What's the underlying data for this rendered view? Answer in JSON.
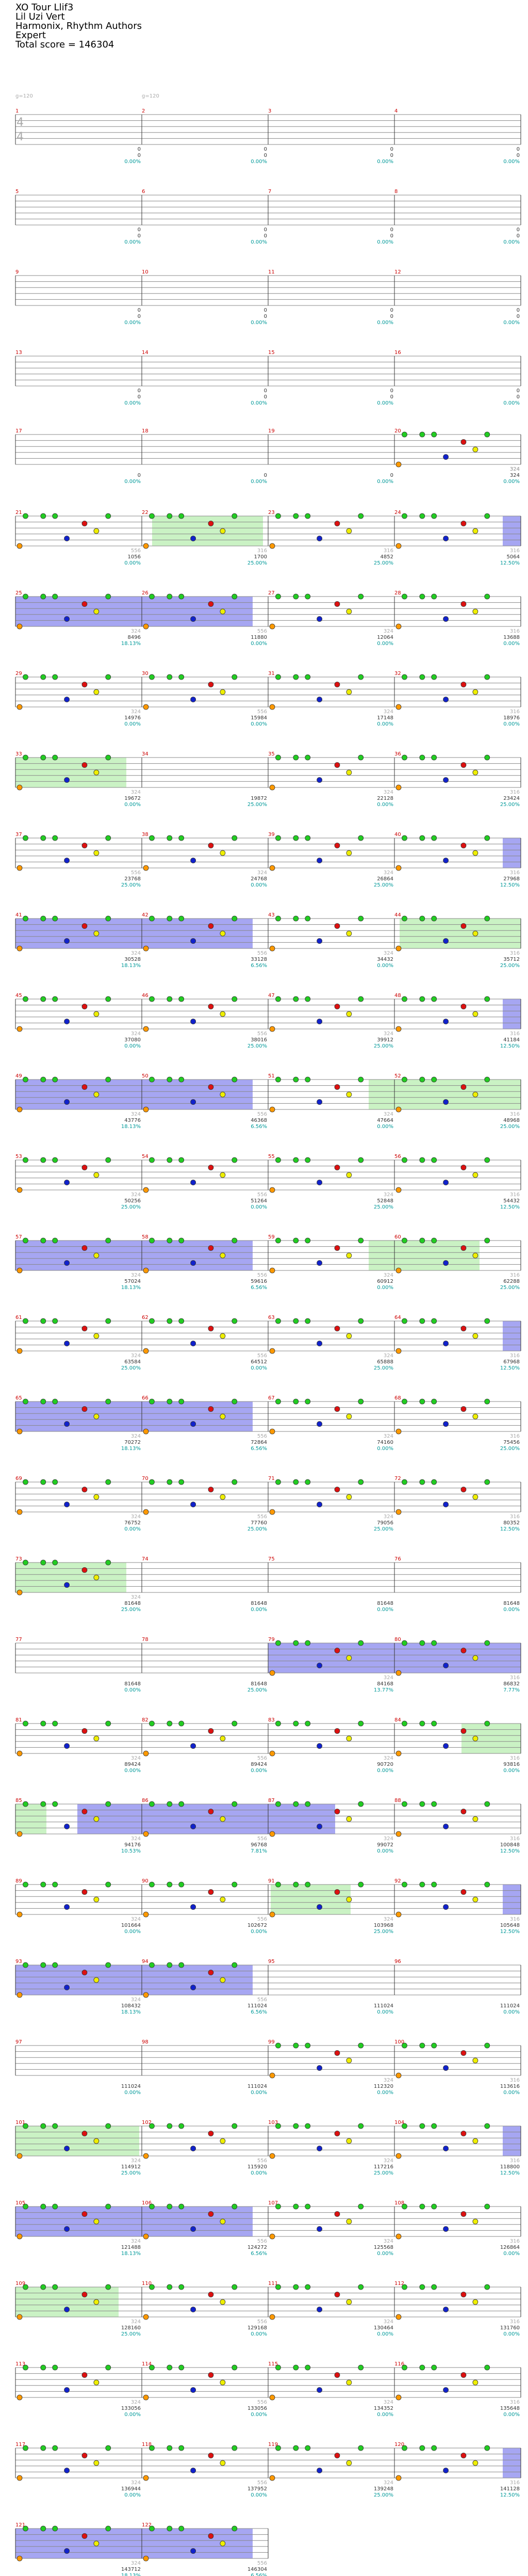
{
  "header": {
    "title": "XO Tour Llif3",
    "artist": "Lil Uzi Vert",
    "authors": "Harmonix, Rhythm Authors",
    "difficulty": "Expert",
    "total_score": "Total score = 146304"
  },
  "notes": {
    "n1": "g=120",
    "n2": "g=120"
  },
  "time_signature": [
    "4",
    "4"
  ],
  "colors": {
    "green": "#22cc22",
    "red": "#dd1111",
    "yellow": "#eeee00",
    "blue": "#1122cc",
    "orange": "#ff9900",
    "star_power": "#b8eeb0",
    "solo": "#8888ee",
    "measure_num": "#cc0000",
    "score": "#333333",
    "pct": "#009999",
    "subnum": "#aaaaaa",
    "staff": "#888888"
  },
  "rows": [
    {
      "measures": [
        {
          "num": "1",
          "beat": "0",
          "score": "0",
          "pct": "0.00%",
          "sub": ""
        },
        {
          "num": "2",
          "beat": "0",
          "score": "0",
          "pct": "0.00%",
          "sub": ""
        },
        {
          "num": "3",
          "beat": "0",
          "score": "0",
          "pct": "0.00%",
          "sub": ""
        },
        {
          "num": "4",
          "beat": "0",
          "score": "0",
          "pct": "0.00%",
          "sub": ""
        }
      ]
    },
    {
      "measures": [
        {
          "num": "5",
          "beat": "0",
          "score": "0",
          "pct": "0.00%",
          "sub": ""
        },
        {
          "num": "6",
          "beat": "0",
          "score": "0",
          "pct": "0.00%",
          "sub": ""
        },
        {
          "num": "7",
          "beat": "0",
          "score": "0",
          "pct": "0.00%",
          "sub": ""
        },
        {
          "num": "8",
          "beat": "0",
          "score": "0",
          "pct": "0.00%",
          "sub": ""
        }
      ]
    },
    {
      "measures": [
        {
          "num": "9",
          "beat": "0",
          "score": "0",
          "pct": "0.00%",
          "sub": ""
        },
        {
          "num": "10",
          "beat": "0",
          "score": "0",
          "pct": "0.00%",
          "sub": ""
        },
        {
          "num": "11",
          "beat": "0",
          "score": "0",
          "pct": "0.00%",
          "sub": ""
        },
        {
          "num": "12",
          "beat": "0",
          "score": "0",
          "pct": "0.00%",
          "sub": ""
        }
      ]
    },
    {
      "measures": [
        {
          "num": "13",
          "beat": "0",
          "score": "0",
          "pct": "0.00%",
          "sub": ""
        },
        {
          "num": "14",
          "beat": "0",
          "score": "0",
          "pct": "0.00%",
          "sub": ""
        },
        {
          "num": "15",
          "beat": "0",
          "score": "0",
          "pct": "0.00%",
          "sub": ""
        },
        {
          "num": "16",
          "beat": "0",
          "score": "0",
          "pct": "0.00%",
          "sub": ""
        }
      ]
    },
    {
      "measures": [
        {
          "num": "17",
          "beat": "",
          "score": "0",
          "pct": "0.00%",
          "sub": ""
        },
        {
          "num": "18",
          "beat": "",
          "score": "0",
          "pct": "0.00%",
          "sub": ""
        },
        {
          "num": "19",
          "beat": "",
          "score": "0",
          "pct": "0.00%",
          "sub": ""
        },
        {
          "num": "20",
          "beat": "324",
          "score": "324",
          "pct": "0.00%",
          "sub": "324"
        }
      ]
    },
    {
      "measures": [
        {
          "num": "21",
          "beat": "",
          "score": "1056",
          "pct": "0.00%",
          "sub": "556"
        },
        {
          "num": "22",
          "beat": "",
          "score": "1700",
          "pct": "25.00%",
          "sub": "316"
        },
        {
          "num": "23",
          "beat": "",
          "score": "4852",
          "pct": "25.00%",
          "sub": "316"
        },
        {
          "num": "24",
          "beat": "",
          "score": "5064",
          "pct": "12.50%",
          "sub": "316"
        }
      ]
    },
    {
      "measures": [
        {
          "num": "25",
          "beat": "",
          "score": "8496",
          "pct": "18.13%",
          "sub": "324"
        },
        {
          "num": "26",
          "beat": "",
          "score": "11880",
          "pct": "0.00%",
          "sub": "556"
        },
        {
          "num": "27",
          "beat": "",
          "score": "12064",
          "pct": "0.00%",
          "sub": "324"
        },
        {
          "num": "28",
          "beat": "",
          "score": "13688",
          "pct": "0.00%",
          "sub": "316"
        }
      ]
    },
    {
      "measures": [
        {
          "num": "29",
          "beat": "",
          "score": "14976",
          "pct": "0.00%",
          "sub": "324"
        },
        {
          "num": "30",
          "beat": "",
          "score": "15984",
          "pct": "0.00%",
          "sub": "556"
        },
        {
          "num": "31",
          "beat": "",
          "score": "17148",
          "pct": "0.00%",
          "sub": "324"
        },
        {
          "num": "32",
          "beat": "",
          "score": "18976",
          "pct": "0.00%",
          "sub": "316"
        }
      ]
    },
    {
      "measures": [
        {
          "num": "33",
          "beat": "",
          "score": "19672",
          "pct": "0.00%",
          "sub": "324"
        },
        {
          "num": "34",
          "beat": "",
          "score": "19872",
          "pct": "25.00%",
          "sub": ""
        },
        {
          "num": "35",
          "beat": "",
          "score": "22128",
          "pct": "0.00%",
          "sub": "324"
        },
        {
          "num": "36",
          "beat": "",
          "score": "23424",
          "pct": "25.00%",
          "sub": "316"
        }
      ]
    },
    {
      "measures": [
        {
          "num": "37",
          "beat": "",
          "score": "23768",
          "pct": "25.00%",
          "sub": "556"
        },
        {
          "num": "38",
          "beat": "",
          "score": "24768",
          "pct": "0.00%",
          "sub": "324"
        },
        {
          "num": "39",
          "beat": "",
          "score": "26864",
          "pct": "25.00%",
          "sub": "324"
        },
        {
          "num": "40",
          "beat": "",
          "score": "27968",
          "pct": "12.50%",
          "sub": "316"
        }
      ]
    },
    {
      "measures": [
        {
          "num": "41",
          "beat": "",
          "score": "30528",
          "pct": "18.13%",
          "sub": "324"
        },
        {
          "num": "42",
          "beat": "",
          "score": "33128",
          "pct": "6.56%",
          "sub": "556"
        },
        {
          "num": "43",
          "beat": "",
          "score": "34432",
          "pct": "0.00%",
          "sub": "324"
        },
        {
          "num": "44",
          "beat": "",
          "score": "35712",
          "pct": "25.00%",
          "sub": "316"
        }
      ]
    },
    {
      "measures": [
        {
          "num": "45",
          "beat": "",
          "score": "37080",
          "pct": "0.00%",
          "sub": "324"
        },
        {
          "num": "46",
          "beat": "",
          "score": "38016",
          "pct": "25.00%",
          "sub": "556"
        },
        {
          "num": "47",
          "beat": "",
          "score": "39912",
          "pct": "25.00%",
          "sub": "324"
        },
        {
          "num": "48",
          "beat": "",
          "score": "41184",
          "pct": "12.50%",
          "sub": "316"
        }
      ]
    },
    {
      "measures": [
        {
          "num": "49",
          "beat": "",
          "score": "43776",
          "pct": "18.13%",
          "sub": "324"
        },
        {
          "num": "50",
          "beat": "",
          "score": "46368",
          "pct": "6.56%",
          "sub": "556"
        },
        {
          "num": "51",
          "beat": "",
          "score": "47664",
          "pct": "0.00%",
          "sub": "324"
        },
        {
          "num": "52",
          "beat": "",
          "score": "48968",
          "pct": "25.00%",
          "sub": "316"
        }
      ]
    },
    {
      "measures": [
        {
          "num": "53",
          "beat": "",
          "score": "50256",
          "pct": "25.00%",
          "sub": "324"
        },
        {
          "num": "54",
          "beat": "",
          "score": "51264",
          "pct": "0.00%",
          "sub": "556"
        },
        {
          "num": "55",
          "beat": "",
          "score": "52848",
          "pct": "25.00%",
          "sub": "324"
        },
        {
          "num": "56",
          "beat": "",
          "score": "54432",
          "pct": "12.50%",
          "sub": "316"
        }
      ]
    },
    {
      "measures": [
        {
          "num": "57",
          "beat": "",
          "score": "57024",
          "pct": "18.13%",
          "sub": "324"
        },
        {
          "num": "58",
          "beat": "",
          "score": "59616",
          "pct": "6.56%",
          "sub": "556"
        },
        {
          "num": "59",
          "beat": "",
          "score": "60912",
          "pct": "0.00%",
          "sub": "324"
        },
        {
          "num": "60",
          "beat": "",
          "score": "62288",
          "pct": "25.00%",
          "sub": "316"
        }
      ]
    },
    {
      "measures": [
        {
          "num": "61",
          "beat": "",
          "score": "63584",
          "pct": "25.00%",
          "sub": "324"
        },
        {
          "num": "62",
          "beat": "",
          "score": "64512",
          "pct": "0.00%",
          "sub": "556"
        },
        {
          "num": "63",
          "beat": "",
          "score": "65888",
          "pct": "25.00%",
          "sub": "324"
        },
        {
          "num": "64",
          "beat": "",
          "score": "67968",
          "pct": "12.50%",
          "sub": "316"
        }
      ]
    },
    {
      "measures": [
        {
          "num": "65",
          "beat": "",
          "score": "70272",
          "pct": "18.13%",
          "sub": "324"
        },
        {
          "num": "66",
          "beat": "",
          "score": "72864",
          "pct": "6.56%",
          "sub": "556"
        },
        {
          "num": "67",
          "beat": "",
          "score": "74160",
          "pct": "0.00%",
          "sub": "324"
        },
        {
          "num": "68",
          "beat": "",
          "score": "75456",
          "pct": "25.00%",
          "sub": "316"
        }
      ]
    },
    {
      "measures": [
        {
          "num": "69",
          "beat": "",
          "score": "76752",
          "pct": "0.00%",
          "sub": "324"
        },
        {
          "num": "70",
          "beat": "",
          "score": "77760",
          "pct": "25.00%",
          "sub": "556"
        },
        {
          "num": "71",
          "beat": "",
          "score": "79056",
          "pct": "25.00%",
          "sub": "324"
        },
        {
          "num": "72",
          "beat": "",
          "score": "80352",
          "pct": "12.50%",
          "sub": "316"
        }
      ]
    },
    {
      "measures": [
        {
          "num": "73",
          "beat": "",
          "score": "81648",
          "pct": "25.00%",
          "sub": "324"
        },
        {
          "num": "74",
          "beat": "",
          "score": "81648",
          "pct": "0.00%",
          "sub": ""
        },
        {
          "num": "75",
          "beat": "",
          "score": "81648",
          "pct": "0.00%",
          "sub": ""
        },
        {
          "num": "76",
          "beat": "",
          "score": "81648",
          "pct": "0.00%",
          "sub": ""
        }
      ]
    },
    {
      "measures": [
        {
          "num": "77",
          "beat": "",
          "score": "81648",
          "pct": "0.00%",
          "sub": ""
        },
        {
          "num": "78",
          "beat": "",
          "score": "81648",
          "pct": "25.00%",
          "sub": ""
        },
        {
          "num": "79",
          "beat": "",
          "score": "84168",
          "pct": "13.77%",
          "sub": "324"
        },
        {
          "num": "80",
          "beat": "",
          "score": "86832",
          "pct": "7.77%",
          "sub": "316"
        }
      ]
    },
    {
      "measures": [
        {
          "num": "81",
          "beat": "",
          "score": "89424",
          "pct": "0.00%",
          "sub": "324"
        },
        {
          "num": "82",
          "beat": "",
          "score": "89424",
          "pct": "0.00%",
          "sub": "556"
        },
        {
          "num": "83",
          "beat": "",
          "score": "90720",
          "pct": "0.00%",
          "sub": "324"
        },
        {
          "num": "84",
          "beat": "",
          "score": "93816",
          "pct": "0.00%",
          "sub": "316"
        }
      ]
    },
    {
      "measures": [
        {
          "num": "85",
          "beat": "",
          "score": "94176",
          "pct": "10.53%",
          "sub": "324"
        },
        {
          "num": "86",
          "beat": "",
          "score": "96768",
          "pct": "7.81%",
          "sub": "556"
        },
        {
          "num": "87",
          "beat": "",
          "score": "99072",
          "pct": "0.00%",
          "sub": "324"
        },
        {
          "num": "88",
          "beat": "",
          "score": "100848",
          "pct": "12.50%",
          "sub": "316"
        }
      ]
    },
    {
      "measures": [
        {
          "num": "89",
          "beat": "",
          "score": "101664",
          "pct": "0.00%",
          "sub": "324"
        },
        {
          "num": "90",
          "beat": "",
          "score": "102672",
          "pct": "0.00%",
          "sub": "556"
        },
        {
          "num": "91",
          "beat": "",
          "score": "103968",
          "pct": "25.00%",
          "sub": "324"
        },
        {
          "num": "92",
          "beat": "",
          "score": "105648",
          "pct": "12.50%",
          "sub": "316"
        }
      ]
    },
    {
      "measures": [
        {
          "num": "93",
          "beat": "",
          "score": "108432",
          "pct": "18.13%",
          "sub": "324"
        },
        {
          "num": "94",
          "beat": "",
          "score": "111024",
          "pct": "6.56%",
          "sub": "556"
        },
        {
          "num": "95",
          "beat": "",
          "score": "111024",
          "pct": "0.00%",
          "sub": ""
        },
        {
          "num": "96",
          "beat": "",
          "score": "111024",
          "pct": "0.00%",
          "sub": ""
        }
      ]
    },
    {
      "measures": [
        {
          "num": "97",
          "beat": "",
          "score": "111024",
          "pct": "0.00%",
          "sub": ""
        },
        {
          "num": "98",
          "beat": "",
          "score": "111024",
          "pct": "0.00%",
          "sub": ""
        },
        {
          "num": "99",
          "beat": "",
          "score": "112320",
          "pct": "0.00%",
          "sub": "324"
        },
        {
          "num": "100",
          "beat": "",
          "score": "113616",
          "pct": "0.00%",
          "sub": "316"
        }
      ]
    },
    {
      "measures": [
        {
          "num": "101",
          "beat": "",
          "score": "114912",
          "pct": "25.00%",
          "sub": "324"
        },
        {
          "num": "102",
          "beat": "",
          "score": "115920",
          "pct": "0.00%",
          "sub": "556"
        },
        {
          "num": "103",
          "beat": "",
          "score": "117216",
          "pct": "25.00%",
          "sub": "324"
        },
        {
          "num": "104",
          "beat": "",
          "score": "118800",
          "pct": "12.50%",
          "sub": "316"
        }
      ]
    },
    {
      "measures": [
        {
          "num": "105",
          "beat": "",
          "score": "121488",
          "pct": "18.13%",
          "sub": "324"
        },
        {
          "num": "106",
          "beat": "",
          "score": "124272",
          "pct": "6.56%",
          "sub": "556"
        },
        {
          "num": "107",
          "beat": "",
          "score": "125568",
          "pct": "0.00%",
          "sub": "324"
        },
        {
          "num": "108",
          "beat": "",
          "score": "126864",
          "pct": "0.00%",
          "sub": "316"
        }
      ]
    },
    {
      "measures": [
        {
          "num": "109",
          "beat": "",
          "score": "128160",
          "pct": "25.00%",
          "sub": "324"
        },
        {
          "num": "110",
          "beat": "",
          "score": "129168",
          "pct": "0.00%",
          "sub": "556"
        },
        {
          "num": "111",
          "beat": "",
          "score": "130464",
          "pct": "0.00%",
          "sub": "324"
        },
        {
          "num": "112",
          "beat": "",
          "score": "131760",
          "pct": "0.00%",
          "sub": "316"
        }
      ]
    },
    {
      "measures": [
        {
          "num": "113",
          "beat": "",
          "score": "133056",
          "pct": "0.00%",
          "sub": "324"
        },
        {
          "num": "114",
          "beat": "",
          "score": "133056",
          "pct": "0.00%",
          "sub": "556"
        },
        {
          "num": "115",
          "beat": "",
          "score": "134352",
          "pct": "0.00%",
          "sub": "324"
        },
        {
          "num": "116",
          "beat": "",
          "score": "135648",
          "pct": "0.00%",
          "sub": "316"
        }
      ]
    },
    {
      "measures": [
        {
          "num": "117",
          "beat": "",
          "score": "136944",
          "pct": "0.00%",
          "sub": "324"
        },
        {
          "num": "118",
          "beat": "",
          "score": "137952",
          "pct": "0.00%",
          "sub": "556"
        },
        {
          "num": "119",
          "beat": "",
          "score": "139248",
          "pct": "25.00%",
          "sub": "324"
        },
        {
          "num": "120",
          "beat": "",
          "score": "141128",
          "pct": "12.50%",
          "sub": "316"
        }
      ]
    },
    {
      "measures": [
        {
          "num": "121",
          "beat": "",
          "score": "143712",
          "pct": "18.13%",
          "sub": "324"
        },
        {
          "num": "122",
          "beat": "",
          "score": "146304",
          "pct": "6.56%",
          "sub": "556"
        }
      ]
    }
  ]
}
